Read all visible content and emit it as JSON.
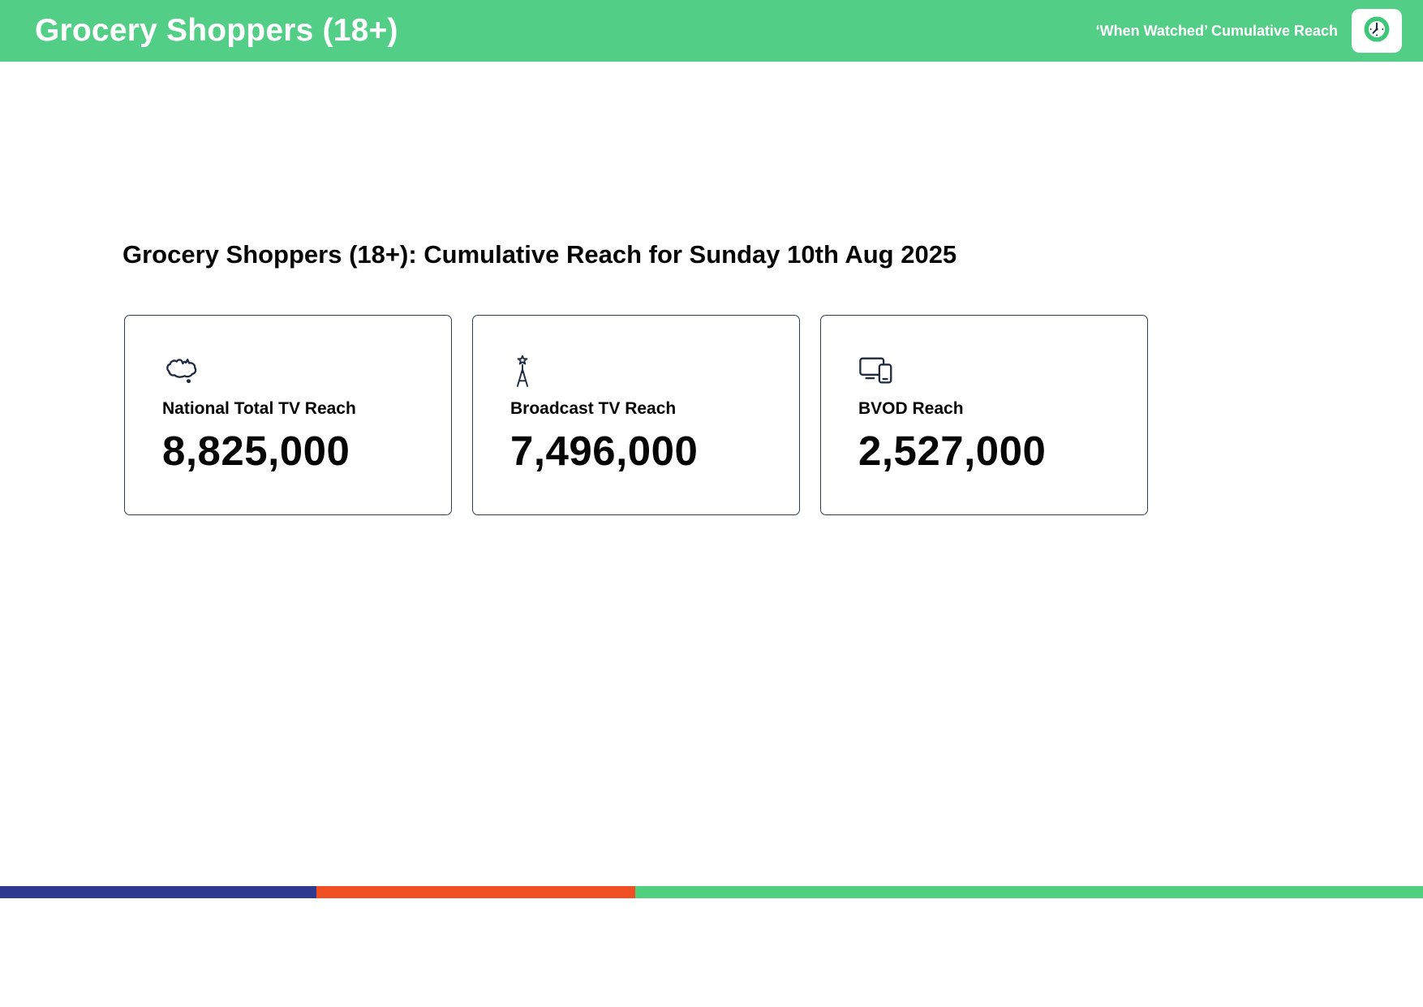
{
  "colors": {
    "header_bg": "#52CE87",
    "icon_navy": "#1E2A40",
    "card_border": "#2F3E54",
    "badge_circle": "#3EC77B",
    "footer_blue": "#2E3A8F",
    "footer_orange": "#F04F24",
    "footer_green": "#4ED07F"
  },
  "header": {
    "title": "Grocery Shoppers (18+)",
    "right_label": "‘When Watched’ Cumulative Reach"
  },
  "main": {
    "heading": "Grocery Shoppers (18+): Cumulative Reach for Sunday 10th Aug 2025",
    "cards": [
      {
        "icon": "australia-map-icon",
        "label": "National Total TV Reach",
        "value": "8,825,000"
      },
      {
        "icon": "broadcast-tower-icon",
        "label": "Broadcast TV Reach",
        "value": "7,496,000"
      },
      {
        "icon": "tv-devices-icon",
        "label": "BVOD Reach",
        "value": "2,527,000"
      }
    ]
  },
  "footer": {
    "segments": [
      {
        "name": "blue",
        "color": "#2E3A8F",
        "width_pct": 22.23
      },
      {
        "name": "orange",
        "color": "#F04F24",
        "width_pct": 22.41
      },
      {
        "name": "green",
        "color": "#4ED07F",
        "width_pct": 55.36
      }
    ]
  }
}
